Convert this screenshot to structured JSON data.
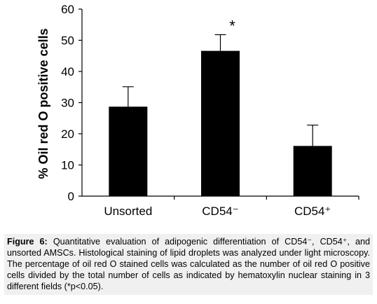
{
  "chart_data": {
    "type": "bar",
    "categories": [
      "Unsorted",
      "CD54⁻",
      "CD54⁺"
    ],
    "values": [
      28.7,
      46.6,
      16.1
    ],
    "error_bars": [
      6.4,
      5.2,
      6.7
    ],
    "significance_markers": [
      "",
      "*",
      ""
    ],
    "ylabel": "% Oil red O positive cells",
    "ylim": [
      0,
      60
    ],
    "yticks": [
      0,
      10,
      20,
      30,
      40,
      50,
      60
    ],
    "grid": false,
    "bar_color": "#000000"
  },
  "caption": {
    "label": "Figure 6:",
    "text": " Quantitative evaluation of adipogenic differentiation of CD54⁻, CD54⁺, and unsorted AMSCs. Histological staining of lipid droplets was analyzed under light microscopy. The percentage of oil red O stained cells was calculated as the number of oil red O positive cells divided by the total number of cells as indicated by hematoxylin nuclear staining in 3 different fields (*p<0.05)."
  }
}
